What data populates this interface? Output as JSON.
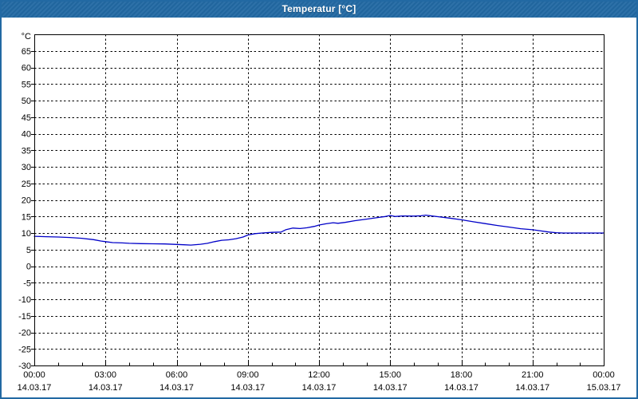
{
  "window": {
    "title": "Temperatur [°C]",
    "colors": {
      "title_bar": "#2269A3",
      "border": "#2269A3",
      "background": "#FFFFFF",
      "title_text": "#FFFFFF"
    }
  },
  "chart_data": {
    "type": "line",
    "title": "Temperatur [°C]",
    "unit_label": "°C",
    "grid": {
      "style": "dashed",
      "color": "#000000"
    },
    "x_axis": {
      "range_hours": [
        0,
        24
      ],
      "tick_hours": [
        0,
        3,
        6,
        9,
        12,
        15,
        18,
        21,
        24
      ],
      "tick_labels": [
        "00:00",
        "03:00",
        "06:00",
        "09:00",
        "12:00",
        "15:00",
        "18:00",
        "21:00",
        "00:00"
      ],
      "tick_dates": [
        "14.03.17",
        "14.03.17",
        "14.03.17",
        "14.03.17",
        "14.03.17",
        "14.03.17",
        "14.03.17",
        "14.03.17",
        "15.03.17"
      ],
      "minor_tick_every_hours": 1
    },
    "y_axis": {
      "range": [
        -30,
        70
      ],
      "tick_step": 5,
      "tick_labels": [
        "65",
        "60",
        "55",
        "50",
        "45",
        "40",
        "35",
        "30",
        "25",
        "20",
        "15",
        "10",
        "5",
        "0",
        "-5",
        "-10",
        "-15",
        "-20",
        "-25",
        "-30"
      ]
    },
    "series": [
      {
        "name": "Temperatur",
        "color": "#0000C8",
        "points": [
          [
            0,
            9.0
          ],
          [
            0.5,
            8.9
          ],
          [
            1,
            8.8
          ],
          [
            1.5,
            8.65
          ],
          [
            2,
            8.4
          ],
          [
            2.5,
            8.0
          ],
          [
            2.8,
            7.6
          ],
          [
            3,
            7.4
          ],
          [
            3.3,
            7.1
          ],
          [
            3.7,
            7.0
          ],
          [
            4,
            6.9
          ],
          [
            4.5,
            6.8
          ],
          [
            5,
            6.75
          ],
          [
            5.5,
            6.7
          ],
          [
            6,
            6.55
          ],
          [
            6.3,
            6.45
          ],
          [
            6.6,
            6.35
          ],
          [
            7,
            6.6
          ],
          [
            7.3,
            6.9
          ],
          [
            7.6,
            7.4
          ],
          [
            7.9,
            7.8
          ],
          [
            8.2,
            7.95
          ],
          [
            8.5,
            8.3
          ],
          [
            8.8,
            8.8
          ],
          [
            9,
            9.4
          ],
          [
            9.3,
            9.8
          ],
          [
            9.6,
            10.0
          ],
          [
            10,
            10.2
          ],
          [
            10.4,
            10.3
          ],
          [
            10.6,
            11.0
          ],
          [
            10.9,
            11.5
          ],
          [
            11.2,
            11.35
          ],
          [
            11.5,
            11.6
          ],
          [
            11.8,
            12.0
          ],
          [
            12,
            12.4
          ],
          [
            12.3,
            12.8
          ],
          [
            12.6,
            13.1
          ],
          [
            12.8,
            12.95
          ],
          [
            13.1,
            13.2
          ],
          [
            13.5,
            13.7
          ],
          [
            14,
            14.2
          ],
          [
            14.5,
            14.7
          ],
          [
            14.8,
            15.0
          ],
          [
            15,
            15.3
          ],
          [
            15.2,
            15.0
          ],
          [
            15.5,
            15.15
          ],
          [
            16,
            15.1
          ],
          [
            16.3,
            15.2
          ],
          [
            16.5,
            15.4
          ],
          [
            16.8,
            15.1
          ],
          [
            17,
            14.95
          ],
          [
            17.5,
            14.5
          ],
          [
            18,
            14.0
          ],
          [
            18.5,
            13.4
          ],
          [
            19,
            12.85
          ],
          [
            19.5,
            12.3
          ],
          [
            20,
            11.8
          ],
          [
            20.5,
            11.3
          ],
          [
            21,
            11.0
          ],
          [
            21.3,
            10.7
          ],
          [
            21.7,
            10.3
          ],
          [
            22,
            10.1
          ],
          [
            22.3,
            10.0
          ],
          [
            23,
            10.0
          ],
          [
            24,
            10.0
          ]
        ]
      }
    ]
  }
}
